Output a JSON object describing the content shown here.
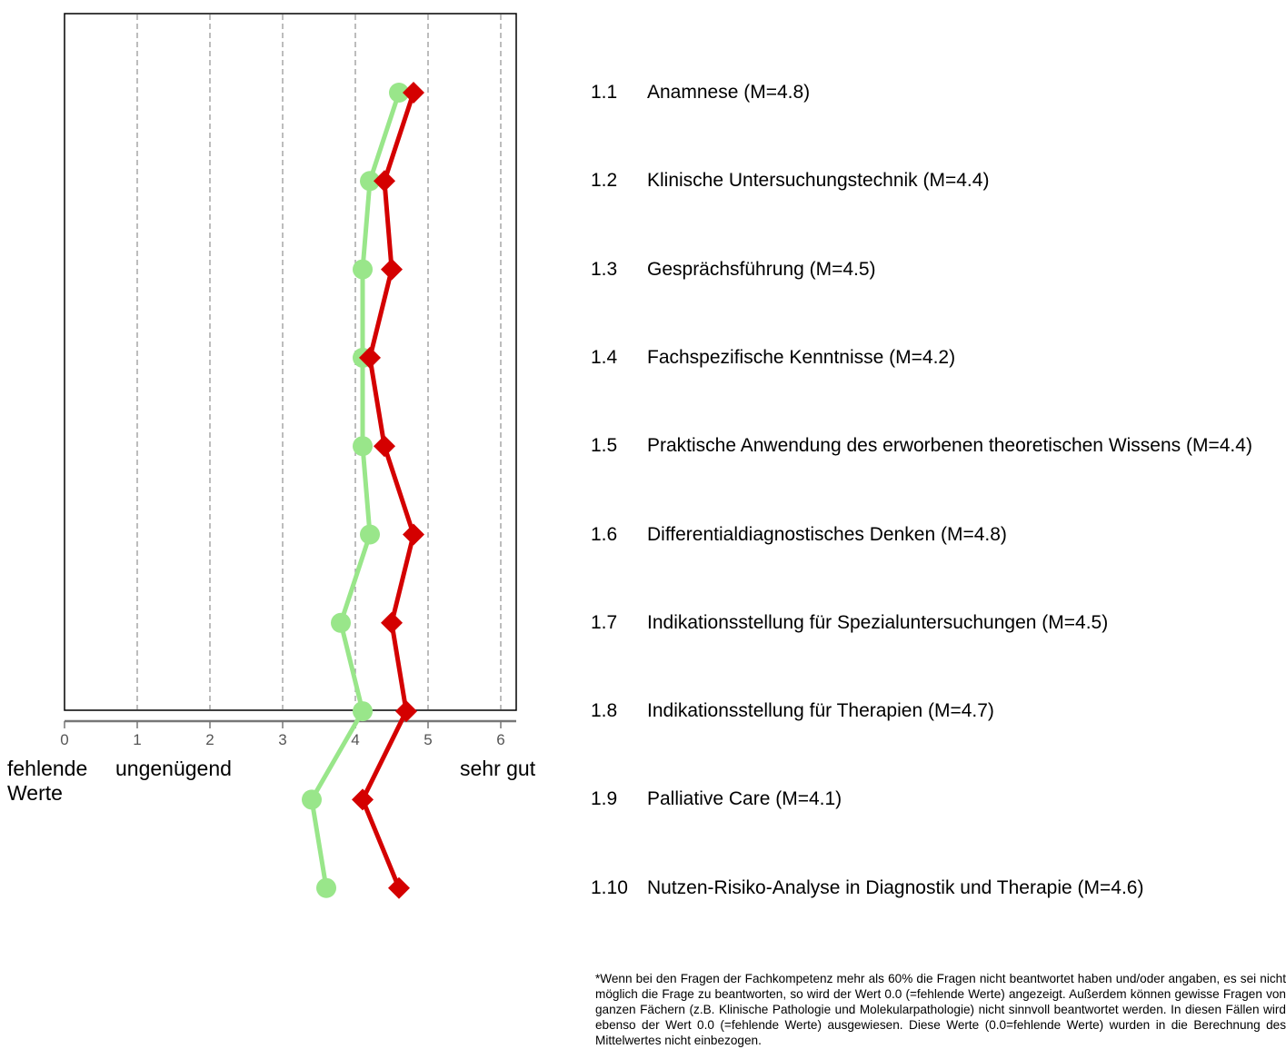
{
  "chart_data": {
    "type": "line",
    "orientation": "horizontal-profile",
    "x_ticks": [
      "0",
      "1",
      "2",
      "3",
      "4",
      "5",
      "6"
    ],
    "xlim": [
      0,
      6.2
    ],
    "grid": "dashed vertical lines at 1-6",
    "categories": [
      "1.1",
      "1.2",
      "1.3",
      "1.4",
      "1.5",
      "1.6",
      "1.7",
      "1.8",
      "1.9",
      "1.10"
    ],
    "series": [
      {
        "marker": "circle",
        "color": "#99e68a",
        "values": [
          4.6,
          4.2,
          4.1,
          4.1,
          4.1,
          4.2,
          3.8,
          4.1,
          3.4,
          3.6
        ]
      },
      {
        "marker": "diamond",
        "color": "#d40000",
        "values": [
          4.8,
          4.4,
          4.5,
          4.2,
          4.4,
          4.8,
          4.5,
          4.7,
          4.1,
          4.6
        ]
      }
    ],
    "scale_labels": {
      "missing": "fehlende Werte",
      "low": "ungenügend",
      "high": "sehr gut"
    }
  },
  "items": [
    {
      "num": "1.1",
      "label": "Anamnese (M=4.8)"
    },
    {
      "num": "1.2",
      "label": "Klinische Untersuchungstechnik (M=4.4)"
    },
    {
      "num": "1.3",
      "label": "Gesprächsführung (M=4.5)"
    },
    {
      "num": "1.4",
      "label": "Fachspezifische Kenntnisse (M=4.2)"
    },
    {
      "num": "1.5",
      "label": "Praktische Anwendung des erworbenen theoretischen Wissens (M=4.4)"
    },
    {
      "num": "1.6",
      "label": "Differentialdiagnostisches Denken (M=4.8)"
    },
    {
      "num": "1.7",
      "label": "Indikationsstellung für Spezialuntersuchungen (M=4.5)"
    },
    {
      "num": "1.8",
      "label": "Indikationsstellung für Therapien (M=4.7)"
    },
    {
      "num": "1.9",
      "label": "Palliative Care (M=4.1)"
    },
    {
      "num": "1.10",
      "label": "Nutzen-Risiko-Analyse in Diagnostik und Therapie (M=4.6)"
    }
  ],
  "footnote": "*Wenn bei den Fragen der Fachkompetenz mehr als 60% die Fragen nicht beantwortet haben und/oder angaben, es sei nicht möglich die Frage zu beantworten, so wird der Wert 0.0 (=fehlende Werte) angezeigt. Außerdem können gewisse Fragen von ganzen Fächern (z.B. Klinische Pathologie und Molekularpathologie) nicht sinnvoll beantwortet werden. In diesen Fällen wird ebenso der Wert 0.0 (=fehlende Werte) ausgewiesen. Diese Werte (0.0=fehlende Werte) wurden in die Berechnung des Mittelwertes nicht einbezogen."
}
